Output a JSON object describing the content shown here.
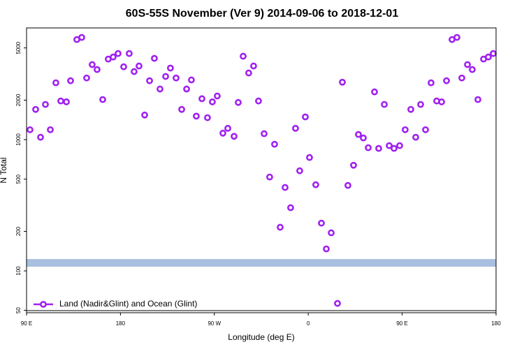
{
  "chart_data": {
    "type": "scatter",
    "title": "60S-55S November (Ver 9)   2014-09-06 to 2018-12-01",
    "x_label": "Longitude (deg E)",
    "y_label": "N Total",
    "log_y": true,
    "xlim": [
      90,
      540
    ],
    "ylim": [
      48,
      7100
    ],
    "xticks": [
      {
        "value": 90,
        "label": "90 E"
      },
      180,
      {
        "value": 270,
        "label": "90 W"
      },
      {
        "value": 360,
        "label": "0"
      },
      {
        "value": 450,
        "label": "90 E"
      },
      {
        "value": 540,
        "label": "180"
      }
    ],
    "yticks": [
      50,
      100,
      200,
      500,
      1000,
      2000,
      5000
    ],
    "reference_band": {
      "value": 115,
      "color": "#a8bfe0"
    },
    "legend": "bottom-left",
    "series": [
      {
        "name": "Land (Nadir&Glint) and Ocean (Glint)",
        "color": "#a020f0",
        "x": [
          93.3,
          98.7,
          103.4,
          108.1,
          112.8,
          118.1,
          122.8,
          128.2,
          132.2,
          138.2,
          142.9,
          147.6,
          152.9,
          157.6,
          163.0,
          168.3,
          173.0,
          177.7,
          183.1,
          188.4,
          193.1,
          197.8,
          203.2,
          207.9,
          212.5,
          217.9,
          223.3,
          227.9,
          233.3,
          238.7,
          243.4,
          248.0,
          252.7,
          258.1,
          263.4,
          268.1,
          272.8,
          278.2,
          282.9,
          288.9,
          292.9,
          297.6,
          302.9,
          307.6,
          312.3,
          317.7,
          323.0,
          327.7,
          333.1,
          337.8,
          343.1,
          347.8,
          351.8,
          357.2,
          361.2,
          367.2,
          372.6,
          377.3,
          382.0,
          388.0,
          392.7,
          398.0,
          403.4,
          408.1,
          412.8,
          417.5,
          423.5,
          427.5,
          432.9,
          437.6,
          442.2,
          447.6,
          452.9,
          458.3,
          463.0,
          467.7,
          472.4,
          477.7,
          483.1,
          487.8,
          492.5,
          497.8,
          502.5,
          507.2,
          512.6,
          517.2,
          522.6,
          528.0,
          532.6,
          537.3
        ],
        "values": [
          1190,
          1700,
          1043,
          1855,
          1190,
          2710,
          1970,
          1940,
          2810,
          5790,
          6010,
          2950,
          3730,
          3420,
          2020,
          4110,
          4260,
          4530,
          3590,
          4530,
          3300,
          3640,
          1540,
          2810,
          4160,
          2430,
          3030,
          3510,
          2950,
          1700,
          2430,
          2850,
          1510,
          2050,
          1470,
          1940,
          2150,
          1120,
          1220,
          1060,
          1920,
          4320,
          3220,
          3640,
          1970,
          1110,
          519,
          922,
          215,
          432,
          303,
          1220,
          579,
          1490,
          731,
          453,
          231,
          147,
          195,
          56.5,
          2740,
          448,
          638,
          1095,
          1030,
          868,
          2310,
          857,
          1855,
          900,
          857,
          900,
          1190,
          1700,
          1043,
          1855,
          1190,
          2710,
          1970,
          1940,
          2810,
          5790,
          6010,
          2950,
          3730,
          3420,
          2020,
          4110,
          4260,
          4530
        ]
      }
    ]
  }
}
